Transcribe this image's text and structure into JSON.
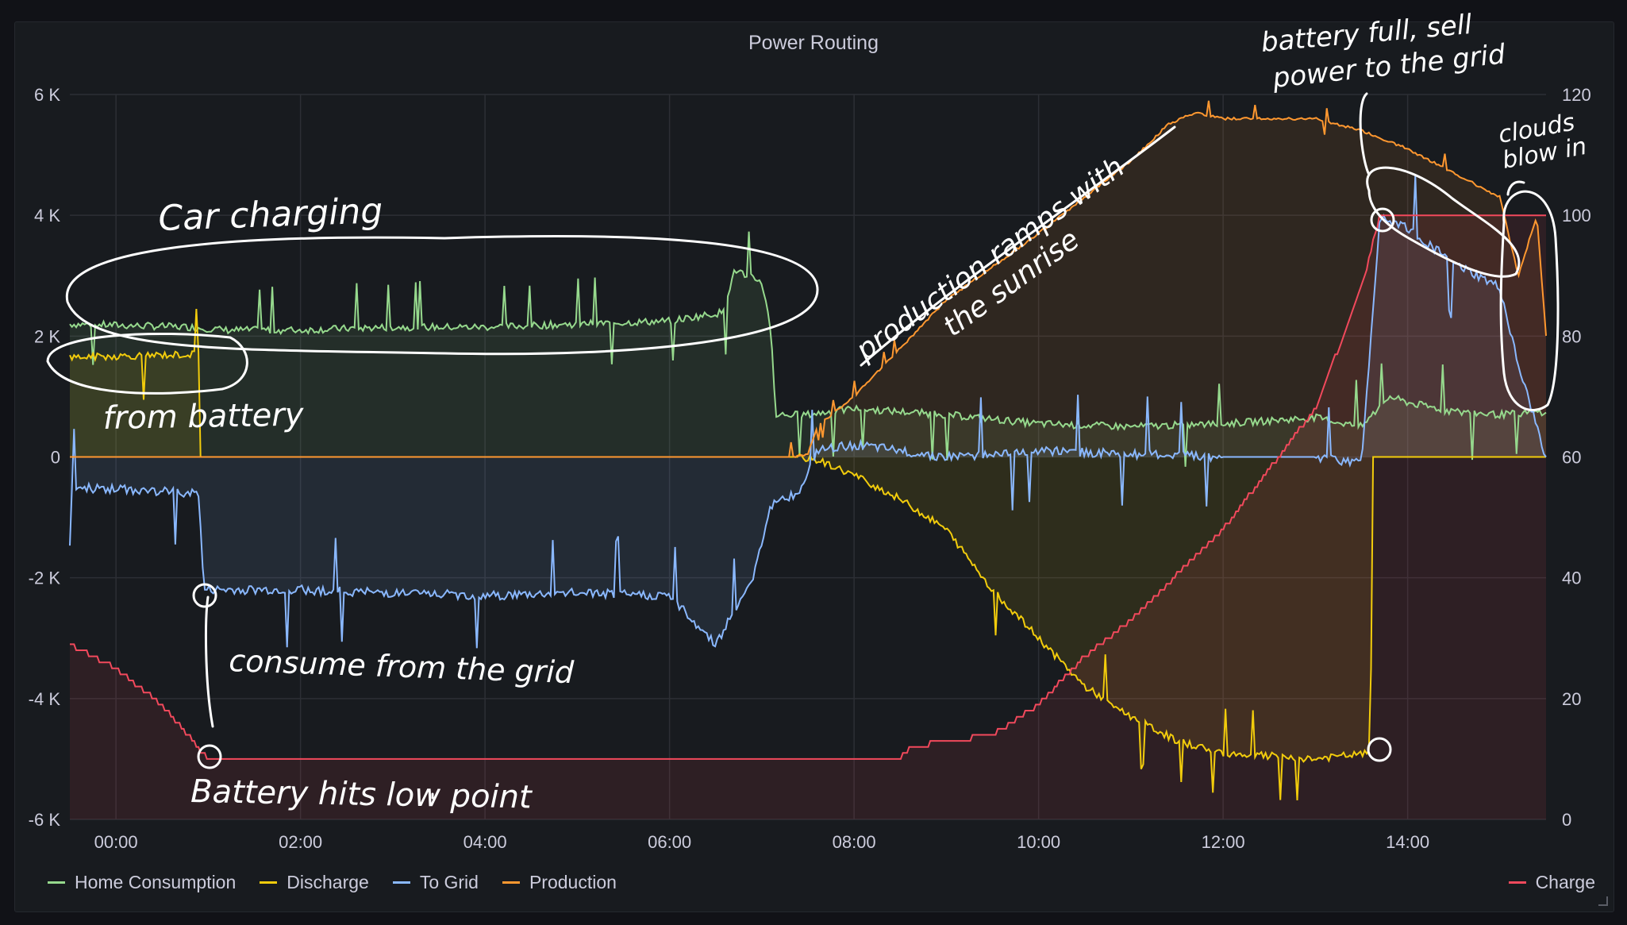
{
  "panel": {
    "title": "Power Routing"
  },
  "legend": [
    {
      "name": "Home Consumption",
      "color": "#96d98d"
    },
    {
      "name": "Discharge",
      "color": "#f2cc0c"
    },
    {
      "name": "To Grid",
      "color": "#8ab8ff"
    },
    {
      "name": "Production",
      "color": "#ff9830"
    }
  ],
  "legend_right": {
    "name": "Charge",
    "color": "#f2495c"
  },
  "annotations": [
    {
      "key": "car",
      "text": "Car charging"
    },
    {
      "key": "battery_src",
      "text": "from battery"
    },
    {
      "key": "grid",
      "text": "consume from the grid"
    },
    {
      "key": "low",
      "text": "Battery hits low point"
    },
    {
      "key": "ramp1",
      "text": "production ramps with"
    },
    {
      "key": "ramp2",
      "text": "the sunrise"
    },
    {
      "key": "full1",
      "text": "battery full, sell"
    },
    {
      "key": "full2",
      "text": "power to the grid"
    },
    {
      "key": "clouds1",
      "text": "clouds"
    },
    {
      "key": "clouds2",
      "text": "blow in"
    }
  ],
  "chart_data": {
    "type": "line",
    "title": "Power Routing",
    "x_labels": [
      "00:00",
      "02:00",
      "04:00",
      "06:00",
      "08:00",
      "10:00",
      "12:00",
      "14:00"
    ],
    "x_range_hours": [
      -0.5,
      15.5
    ],
    "y_left": {
      "range": [
        -6000,
        6000
      ],
      "ticks": [
        -6000,
        -4000,
        -2000,
        0,
        2000,
        4000,
        6000
      ],
      "tick_labels": [
        "-6 K",
        "-4 K",
        "-2 K",
        "0",
        "2 K",
        "4 K",
        "6 K"
      ]
    },
    "y_right": {
      "range": [
        0,
        120
      ],
      "ticks": [
        0,
        20,
        40,
        60,
        80,
        100,
        120
      ],
      "tick_labels": [
        "0",
        "20",
        "40",
        "60",
        "80",
        "100",
        "120"
      ]
    },
    "grid": true,
    "legend_position": "bottom",
    "series": [
      {
        "name": "Home Consumption",
        "axis": "left",
        "color": "#96d98d",
        "points": [
          [
            -0.5,
            2200
          ],
          [
            0.8,
            2150
          ],
          [
            1.2,
            2100
          ],
          [
            2,
            2100
          ],
          [
            3,
            2150
          ],
          [
            4,
            2150
          ],
          [
            5,
            2200
          ],
          [
            6,
            2250
          ],
          [
            6.6,
            2400
          ],
          [
            6.7,
            3100
          ],
          [
            7.0,
            2900
          ],
          [
            7.1,
            2100
          ],
          [
            7.15,
            700
          ],
          [
            7.5,
            700
          ],
          [
            8,
            800
          ],
          [
            9,
            700
          ],
          [
            10,
            550
          ],
          [
            11,
            500
          ],
          [
            12,
            550
          ],
          [
            13,
            650
          ],
          [
            13.5,
            500
          ],
          [
            13.8,
            1000
          ],
          [
            14,
            900
          ],
          [
            14.5,
            750
          ],
          [
            15,
            700
          ],
          [
            15.5,
            750
          ]
        ]
      },
      {
        "name": "Discharge",
        "axis": "left",
        "color": "#f2cc0c",
        "points": [
          [
            -0.5,
            1650
          ],
          [
            0.9,
            1700
          ],
          [
            0.91,
            0
          ],
          [
            7.4,
            0
          ],
          [
            7.6,
            -50
          ],
          [
            8,
            -300
          ],
          [
            8.5,
            -700
          ],
          [
            9,
            -1200
          ],
          [
            9.5,
            -2200
          ],
          [
            10,
            -3000
          ],
          [
            10.5,
            -3800
          ],
          [
            11,
            -4300
          ],
          [
            11.5,
            -4700
          ],
          [
            12,
            -4900
          ],
          [
            13,
            -5000
          ],
          [
            13.6,
            -4900
          ],
          [
            13.61,
            0
          ],
          [
            15.5,
            0
          ]
        ]
      },
      {
        "name": "To Grid",
        "axis": "left",
        "color": "#8ab8ff",
        "points": [
          [
            -0.5,
            -500
          ],
          [
            0.9,
            -600
          ],
          [
            0.95,
            -2200
          ],
          [
            2,
            -2200
          ],
          [
            3,
            -2250
          ],
          [
            4,
            -2300
          ],
          [
            5,
            -2250
          ],
          [
            6,
            -2300
          ],
          [
            6.5,
            -3100
          ],
          [
            6.9,
            -2000
          ],
          [
            7.1,
            -800
          ],
          [
            7.4,
            -600
          ],
          [
            7.6,
            100
          ],
          [
            8,
            200
          ],
          [
            8.5,
            100
          ],
          [
            9,
            0
          ],
          [
            10,
            100
          ],
          [
            11,
            50
          ],
          [
            12,
            0
          ],
          [
            13,
            0
          ],
          [
            13.5,
            -100
          ],
          [
            13.7,
            4000
          ],
          [
            14,
            3800
          ],
          [
            14.5,
            3200
          ],
          [
            15,
            2800
          ],
          [
            15.2,
            1500
          ],
          [
            15.5,
            0
          ]
        ]
      },
      {
        "name": "Production",
        "axis": "left",
        "color": "#ff9830",
        "points": [
          [
            -0.5,
            0
          ],
          [
            7.3,
            0
          ],
          [
            7.5,
            50
          ],
          [
            7.6,
            500
          ],
          [
            8,
            1000
          ],
          [
            8.5,
            1800
          ],
          [
            9,
            2600
          ],
          [
            10,
            3700
          ],
          [
            11,
            4900
          ],
          [
            11.4,
            5500
          ],
          [
            11.7,
            5700
          ],
          [
            12,
            5600
          ],
          [
            13,
            5600
          ],
          [
            13.5,
            5400
          ],
          [
            14,
            5100
          ],
          [
            14.5,
            4700
          ],
          [
            15,
            4300
          ],
          [
            15.2,
            3000
          ],
          [
            15.4,
            4000
          ],
          [
            15.5,
            2000
          ]
        ]
      },
      {
        "name": "Charge",
        "axis": "right",
        "color": "#f2495c",
        "points": [
          [
            -0.5,
            29
          ],
          [
            0,
            25
          ],
          [
            0.5,
            19
          ],
          [
            1,
            10
          ],
          [
            2,
            10
          ],
          [
            4,
            10
          ],
          [
            6,
            10
          ],
          [
            8,
            10
          ],
          [
            8.5,
            10
          ],
          [
            8.6,
            12
          ],
          [
            9.5,
            14
          ],
          [
            10,
            19
          ],
          [
            10.5,
            27
          ],
          [
            11,
            33
          ],
          [
            12,
            48
          ],
          [
            13,
            68
          ],
          [
            13.5,
            88
          ],
          [
            13.7,
            100
          ],
          [
            14,
            100
          ],
          [
            15.5,
            100
          ]
        ]
      }
    ]
  }
}
